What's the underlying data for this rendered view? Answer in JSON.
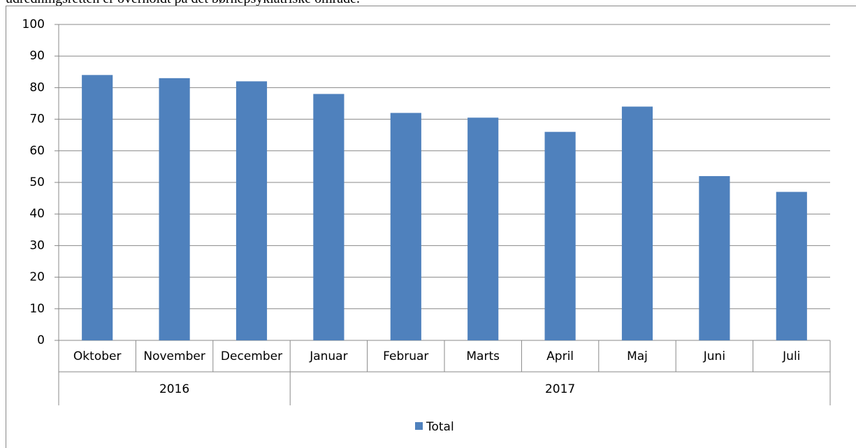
{
  "caption": "udredningsretten er overholdt på det børnepsykiatriske område.",
  "chart_data": {
    "type": "bar",
    "groups": [
      {
        "name": "2016",
        "categories": [
          "Oktober",
          "November",
          "December"
        ]
      },
      {
        "name": "2017",
        "categories": [
          "Januar",
          "Februar",
          "Marts",
          "April",
          "Maj",
          "Juni",
          "Juli"
        ]
      }
    ],
    "series": [
      {
        "name": "Total",
        "color": "#4f81bd",
        "values": [
          84,
          83,
          82,
          78,
          72,
          70.5,
          66,
          74,
          52,
          47
        ]
      }
    ],
    "ylim": [
      0,
      100
    ],
    "yticks": [
      0,
      10,
      20,
      30,
      40,
      50,
      60,
      70,
      80,
      90,
      100
    ],
    "grid": true,
    "legend": "bottom"
  }
}
